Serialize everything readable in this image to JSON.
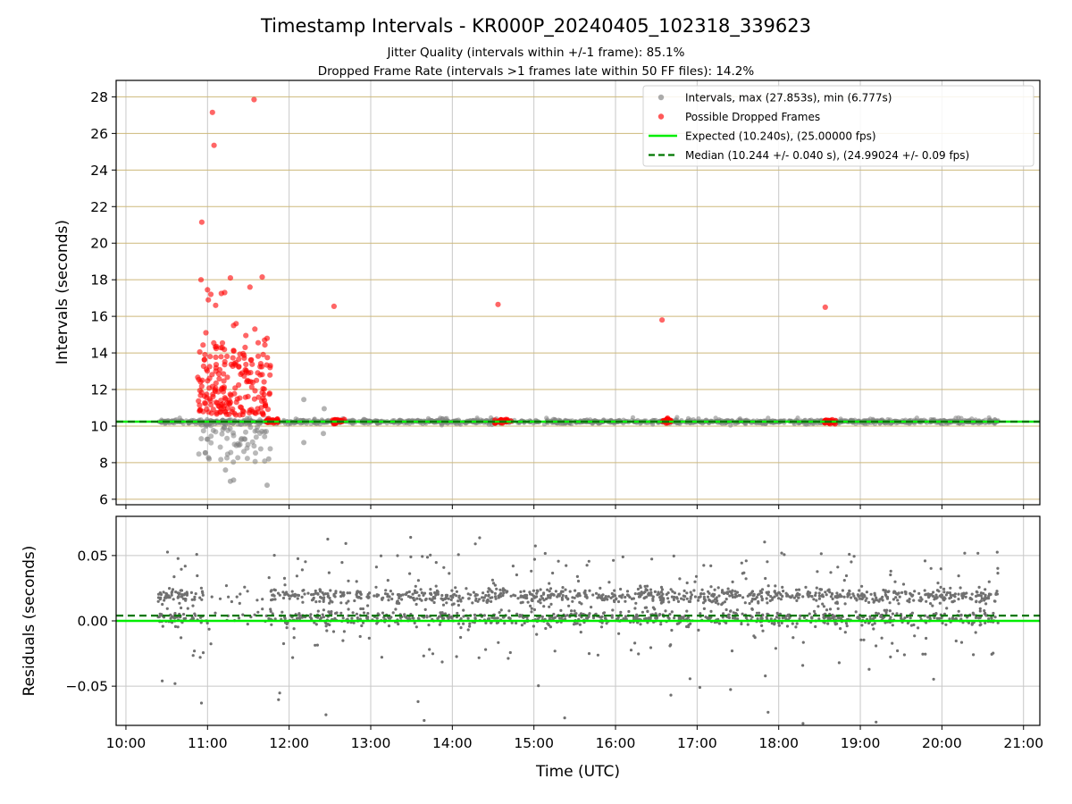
{
  "chart_data": {
    "type": "scatter",
    "title": "Timestamp Intervals - KR000P_20240405_102318_339623",
    "subtitle_line1": "Jitter Quality (intervals within +/-1 frame): 85.1%",
    "subtitle_line2": "Dropped Frame Rate (intervals >1 frames late within 50 FF files): 14.2%",
    "xlabel": "Time (UTC)",
    "x_ticks": [
      "10:00",
      "11:00",
      "12:00",
      "13:00",
      "14:00",
      "15:00",
      "16:00",
      "17:00",
      "18:00",
      "19:00",
      "20:00",
      "21:00"
    ],
    "x_range_hours": [
      9.88,
      21.2
    ],
    "data_x_range_hours": [
      10.39,
      20.69
    ],
    "top_panel": {
      "ylabel": "Intervals (seconds)",
      "ylim": [
        5.7,
        28.9
      ],
      "y_ticks": [
        "6",
        "8",
        "10",
        "12",
        "14",
        "16",
        "18",
        "20",
        "22",
        "24",
        "26",
        "28"
      ],
      "y_tick_values": [
        6,
        8,
        10,
        12,
        14,
        16,
        18,
        20,
        22,
        24,
        26,
        28
      ],
      "grid": "both",
      "expected_value": 10.24,
      "median_value": 10.244,
      "max_interval": 27.853,
      "min_interval": 6.777,
      "dropped_frames_points": [
        [
          10.93,
          21.15
        ],
        [
          11.06,
          27.15
        ],
        [
          11.08,
          25.35
        ],
        [
          11.57,
          27.85
        ],
        [
          10.92,
          18.0
        ],
        [
          11.28,
          18.1
        ],
        [
          11.67,
          18.15
        ],
        [
          11.52,
          17.6
        ],
        [
          11.0,
          17.45
        ],
        [
          11.04,
          17.2
        ],
        [
          11.21,
          17.3
        ],
        [
          11.17,
          17.25
        ],
        [
          11.01,
          16.9
        ],
        [
          11.1,
          16.6
        ],
        [
          12.55,
          16.55
        ],
        [
          14.56,
          16.65
        ],
        [
          16.57,
          15.8
        ],
        [
          18.57,
          16.5
        ],
        [
          11.35,
          15.6
        ],
        [
          11.32,
          15.5
        ],
        [
          10.98,
          15.1
        ],
        [
          11.58,
          15.3
        ],
        [
          11.47,
          14.95
        ],
        [
          11.73,
          14.8
        ],
        [
          11.7,
          14.7
        ]
      ],
      "dropped_cluster": {
        "x_start": 10.88,
        "x_end": 11.78,
        "y_low": 10.6,
        "y_high": 14.6,
        "count": 200
      },
      "dropped_bands_hours": [
        [
          11.72,
          11.87
        ],
        [
          12.52,
          12.68
        ],
        [
          14.52,
          14.72
        ],
        [
          16.57,
          16.68
        ],
        [
          18.56,
          18.7
        ]
      ],
      "low_outliers": [
        [
          11.28,
          6.98
        ],
        [
          11.32,
          7.05
        ],
        [
          11.73,
          6.77
        ],
        [
          11.22,
          7.6
        ],
        [
          11.75,
          8.2
        ],
        [
          11.02,
          8.2
        ],
        [
          11.45,
          9.3
        ],
        [
          12.18,
          9.1
        ],
        [
          12.42,
          9.6
        ],
        [
          12.18,
          11.45
        ],
        [
          12.43,
          10.95
        ]
      ],
      "normal_low_cluster": {
        "x_start": 10.88,
        "x_end": 11.78,
        "y_low": 7.8,
        "y_high": 10.2,
        "count": 80
      },
      "legend": [
        {
          "label": "Intervals, max (27.853s), min (6.777s)",
          "marker": "dot",
          "color": "#808080"
        },
        {
          "label": "Possible Dropped Frames",
          "marker": "dot",
          "color": "#ff0000"
        },
        {
          "label": "Expected (10.240s), (25.00000 fps)",
          "marker": "line",
          "color": "#00ee00"
        },
        {
          "label": "Median (10.244 +/- 0.040 s), (24.99024 +/- 0.09 fps)",
          "marker": "dashed",
          "color": "#007700"
        }
      ],
      "legend_position": "upper right"
    },
    "bottom_panel": {
      "ylabel": "Residuals (seconds)",
      "ylim": [
        -0.08,
        0.08
      ],
      "y_ticks": [
        "−0.05",
        "0.00",
        "0.05"
      ],
      "y_tick_values": [
        -0.05,
        0.0,
        0.05
      ],
      "grid": "both",
      "expected_residual": 0.0,
      "median_residual": 0.004,
      "main_bands": [
        0.002,
        0.019
      ],
      "residual_gap_hours": [
        10.95,
        11.75
      ],
      "point_color": "#707070"
    },
    "colors": {
      "normal_points": "#808080",
      "dropped_points": "#ff0000",
      "expected_line": "#00ee00",
      "median_line": "#007700",
      "top_grid_horizontal": "#cdb87a",
      "grid_vertical": "#c8c8c8"
    }
  }
}
